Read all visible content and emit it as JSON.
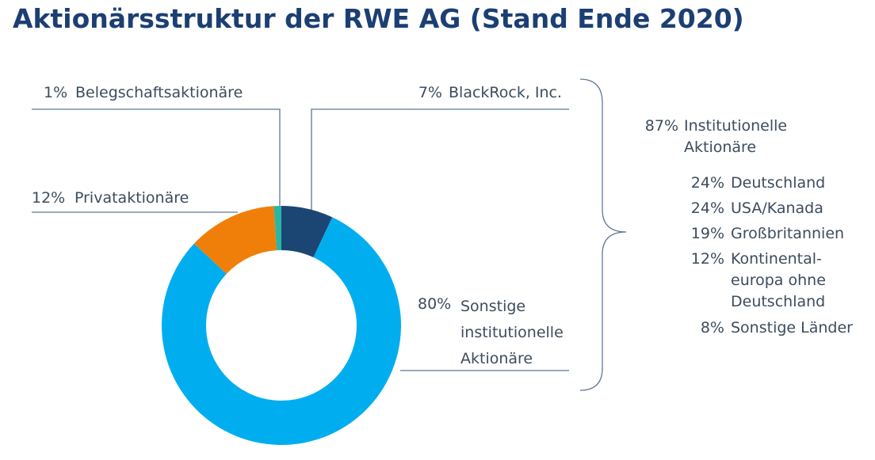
{
  "chart_data": {
    "type": "donut",
    "title": "Aktionärsstruktur der RWE AG (Stand Ende 2020)",
    "categories": [
      "BlackRock, Inc.",
      "Sonstige\ninstitutionelle\nAktionäre",
      "Privataktionäre",
      "Belegschaftsaktionäre"
    ],
    "values": [
      7,
      80,
      12,
      1
    ],
    "value_labels": [
      "7%",
      "80%",
      "12%",
      "1%"
    ],
    "colors": [
      "#1b4674",
      "#00aeef",
      "#f07f09",
      "#2bb5a4"
    ],
    "breakdown": {
      "share": "87%",
      "label": "Institutionelle\nAktionäre",
      "items": [
        {
          "share": "24%",
          "label": "Deutschland"
        },
        {
          "share": "24%",
          "label": "USA/Kanada"
        },
        {
          "share": "19%",
          "label": "Großbritannien"
        },
        {
          "share": "12%",
          "label": "Kontinental-\neuropa ohne\nDeutschland"
        },
        {
          "share": "8%",
          "label": "Sonstige Länder"
        }
      ]
    }
  }
}
